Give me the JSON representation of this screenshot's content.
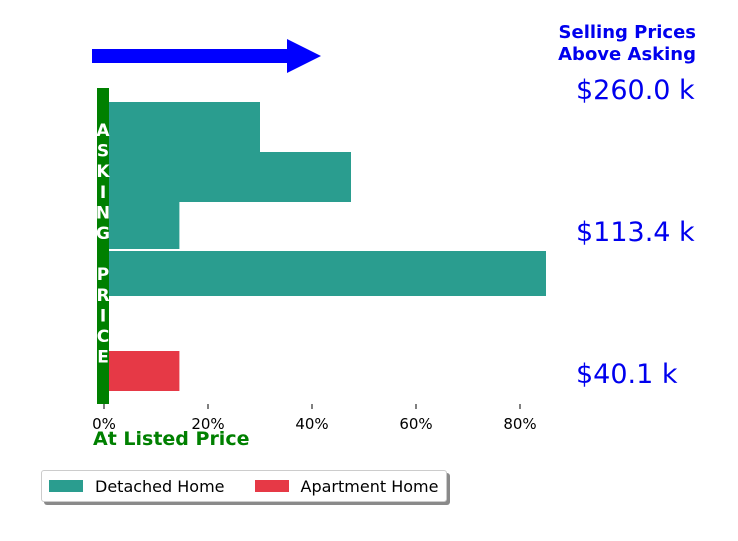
{
  "chart_data": {
    "type": "bar",
    "orientation": "horizontal",
    "x_ticks": [
      "0%",
      "20%",
      "40%",
      "60%",
      "80%"
    ],
    "x_tick_values": [
      0,
      20,
      40,
      60,
      80
    ],
    "xlim": [
      0,
      85
    ],
    "xlabel": "At Listed Price",
    "vertical_label": "ASKING PRICE",
    "top_right_title": [
      "Selling Prices",
      "Above Asking"
    ],
    "price_labels": [
      "$260.0 k",
      "$113.4 k",
      "$40.1 k"
    ],
    "bars": [
      {
        "series": "Detached Home",
        "value": 30
      },
      {
        "series": "Detached Home",
        "value": 47.5
      },
      {
        "series": "Detached Home",
        "value": 14.5
      },
      {
        "series": "Detached Home",
        "value": 85
      },
      {
        "series": "Apartment Home",
        "value": 14.5
      }
    ],
    "series": [
      {
        "name": "Detached Home",
        "color": "#2a9d8f"
      },
      {
        "name": "Apartment Home",
        "color": "#e63946"
      }
    ],
    "legend_position": "bottom-left",
    "arrow": {
      "direction": "right",
      "color": "#0000ff"
    },
    "grid": false
  }
}
